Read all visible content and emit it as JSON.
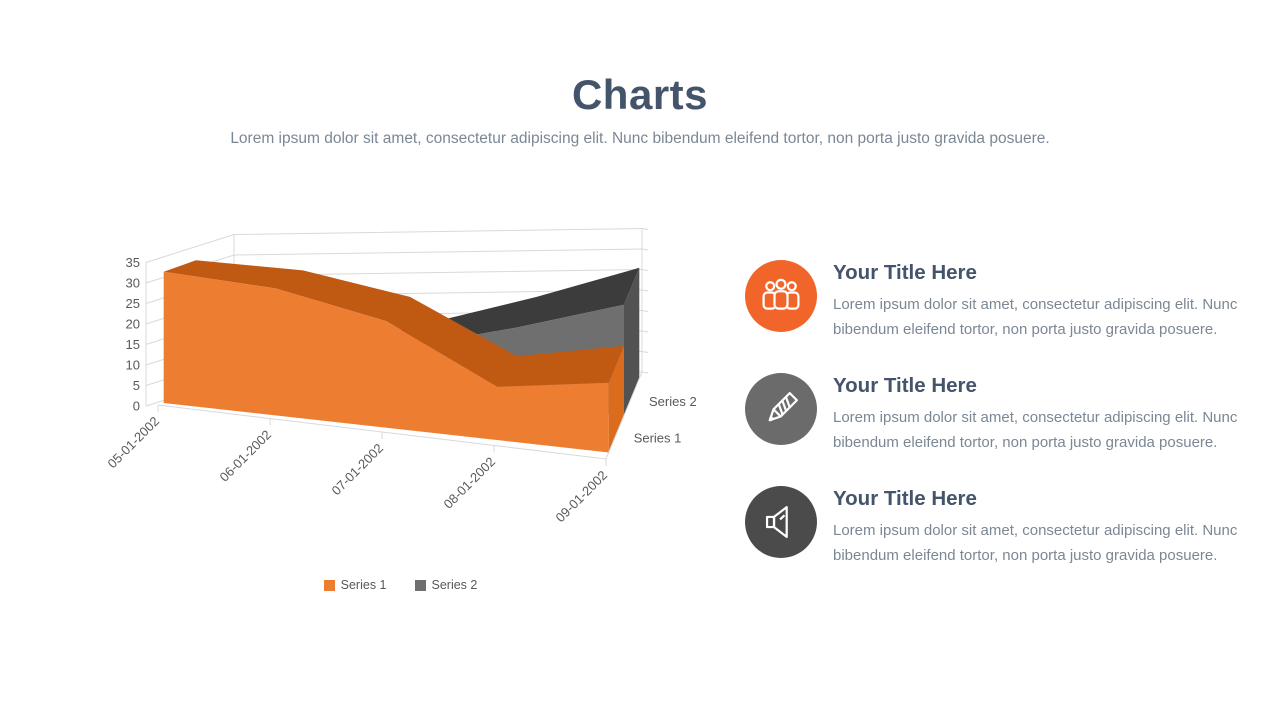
{
  "header": {
    "title": "Charts",
    "subtitle": "Lorem ipsum dolor sit amet, consectetur adipiscing elit. Nunc bibendum eleifend tortor, non porta justo gravida posuere."
  },
  "chart_data": {
    "type": "area",
    "style": "3d-area",
    "title": "",
    "categories": [
      "05-01-2002",
      "06-01-2002",
      "07-01-2002",
      "08-01-2002",
      "09-01-2002"
    ],
    "series": [
      {
        "name": "Series 1",
        "values": [
          32,
          31,
          26,
          13,
          17
        ],
        "color": "#ED7D31",
        "top_color": "#C05A13",
        "side_color": "#DB6C1E"
      },
      {
        "name": "Series 2",
        "values": [
          5,
          8,
          14,
          20,
          27
        ],
        "color": "#6F6F6F",
        "top_color": "#3C3C3C",
        "side_color": "#525252"
      }
    ],
    "y_ticks": [
      0,
      5,
      10,
      15,
      20,
      25,
      30,
      35
    ],
    "ylim": [
      0,
      35
    ],
    "grid": true,
    "legend_position": "bottom",
    "axis_text_color": "#595959",
    "gridline_color": "#D9D9D9"
  },
  "features": [
    {
      "icon": "people-group-icon",
      "circle_color": "#F1652B",
      "title": "Your Title Here",
      "body": "Lorem ipsum dolor sit amet, consectetur adipiscing elit. Nunc bibendum eleifend tortor, non porta justo gravida posuere."
    },
    {
      "icon": "pencil-icon",
      "circle_color": "#6B6B6B",
      "title": "Your Title Here",
      "body": "Lorem ipsum dolor sit amet, consectetur adipiscing elit. Nunc bibendum eleifend tortor, non porta justo gravida posuere."
    },
    {
      "icon": "speaker-icon",
      "circle_color": "#4B4B4B",
      "title": "Your Title Here",
      "body": "Lorem ipsum dolor sit amet, consectetur adipiscing elit. Nunc bibendum eleifend tortor, non porta justo gravida posuere."
    }
  ]
}
